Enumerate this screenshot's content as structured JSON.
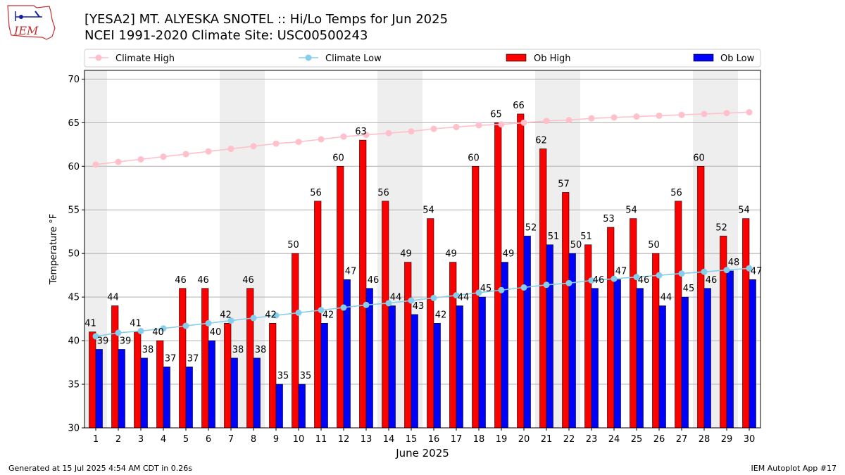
{
  "header": {
    "title_line1": "[YESA2] MT. ALYESKA SNOTEL :: Hi/Lo Temps for Jun 2025",
    "title_line2": "NCEI 1991-2020 Climate Site: USC00500243",
    "logo_text": "IEM"
  },
  "footer": {
    "generated": "Generated at 15 Jul 2025 4:54 AM CDT in 0.26s",
    "app": "IEM Autoplot App #17"
  },
  "colors": {
    "ob_high": "#ff0000",
    "ob_low": "#0000ff",
    "climate_high": "#ffc0cb",
    "climate_low": "#87ceeb",
    "weekend_band": "#eeeeee",
    "grid": "#b0b0b0"
  },
  "chart_data": {
    "type": "bar",
    "xlabel": "June 2025",
    "ylabel": "Temperature °F",
    "ylim": [
      30,
      71
    ],
    "yticks": [
      30,
      35,
      40,
      45,
      50,
      55,
      60,
      65,
      70
    ],
    "grid": "horizontal",
    "legend_position": "top",
    "categories": [
      1,
      2,
      3,
      4,
      5,
      6,
      7,
      8,
      9,
      10,
      11,
      12,
      13,
      14,
      15,
      16,
      17,
      18,
      19,
      20,
      21,
      22,
      23,
      24,
      25,
      26,
      27,
      28,
      29,
      30
    ],
    "shaded_days": [
      1,
      7,
      8,
      14,
      15,
      21,
      22,
      28,
      29
    ],
    "series": [
      {
        "name": "Ob High",
        "kind": "bar",
        "values": [
          41,
          44,
          41,
          40,
          46,
          46,
          42,
          46,
          42,
          50,
          56,
          60,
          63,
          56,
          49,
          54,
          49,
          60,
          65,
          66,
          62,
          57,
          51,
          53,
          54,
          50,
          56,
          60,
          52,
          54
        ]
      },
      {
        "name": "Ob Low",
        "kind": "bar",
        "values": [
          39,
          39,
          38,
          37,
          37,
          40,
          38,
          38,
          35,
          35,
          42,
          47,
          46,
          44,
          43,
          42,
          44,
          45,
          49,
          52,
          51,
          50,
          46,
          47,
          46,
          44,
          45,
          46,
          48,
          47
        ]
      },
      {
        "name": "Climate High",
        "kind": "line",
        "values": [
          60.2,
          60.5,
          60.8,
          61.1,
          61.4,
          61.7,
          62.0,
          62.3,
          62.6,
          62.8,
          63.1,
          63.4,
          63.6,
          63.8,
          64.0,
          64.3,
          64.5,
          64.7,
          64.8,
          65.0,
          65.2,
          65.3,
          65.5,
          65.6,
          65.7,
          65.8,
          65.9,
          66.0,
          66.1,
          66.2
        ]
      },
      {
        "name": "Climate Low",
        "kind": "line",
        "values": [
          40.5,
          40.9,
          41.1,
          41.4,
          41.7,
          42.0,
          42.3,
          42.6,
          42.9,
          43.2,
          43.5,
          43.8,
          44.1,
          44.3,
          44.6,
          44.9,
          45.2,
          45.5,
          45.8,
          46.1,
          46.4,
          46.6,
          46.9,
          47.1,
          47.3,
          47.5,
          47.7,
          47.9,
          48.1,
          48.3
        ]
      }
    ]
  }
}
